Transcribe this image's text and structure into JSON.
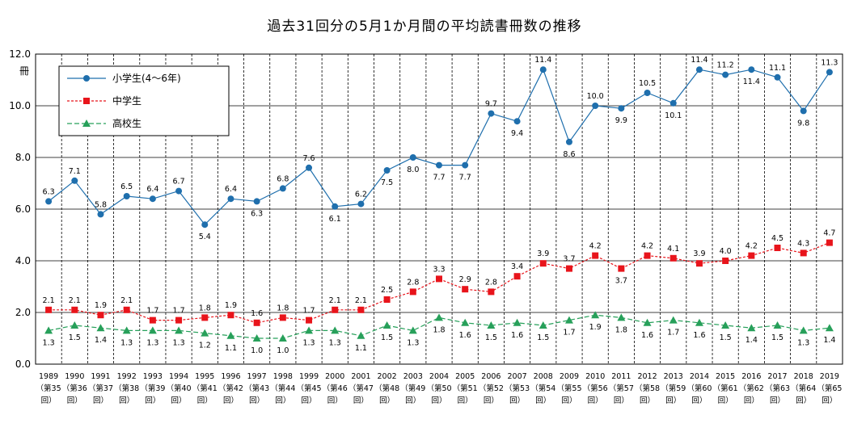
{
  "chart_data": {
    "type": "line",
    "title": "過去31回分の5月1か月間の平均読書冊数の推移",
    "ylabel": "冊",
    "ylim": [
      0,
      12
    ],
    "yticks": [
      "0.0",
      "2.0",
      "4.0",
      "6.0",
      "8.0",
      "10.0",
      "12.0"
    ],
    "grid": true,
    "legend_position": "top-left",
    "categories": [
      "1989",
      "1990",
      "1991",
      "1992",
      "1993",
      "1994",
      "1995",
      "1996",
      "1997",
      "1998",
      "1999",
      "2000",
      "2001",
      "2002",
      "2003",
      "2004",
      "2005",
      "2006",
      "2007",
      "2008",
      "2009",
      "2010",
      "2011",
      "2012",
      "2013",
      "2014",
      "2015",
      "2016",
      "2017",
      "2018",
      "2019"
    ],
    "sublabels": [
      "（第35",
      "（第36",
      "（第37",
      "（第38",
      "（第39",
      "（第40",
      "（第41",
      "（第42",
      "（第43",
      "（第44",
      "（第45",
      "（第46",
      "（第47",
      "（第48",
      "（第49",
      "（第50",
      "（第51",
      "（第52",
      "（第53",
      "（第54",
      "（第55",
      "（第56",
      "（第57",
      "（第58",
      "（第59",
      "（第60",
      "（第61",
      "（第62",
      "（第63",
      "（第64",
      "（第65"
    ],
    "sublabel2": "回）",
    "series": [
      {
        "name": "小学生(4～6年)",
        "color": "#1f6fad",
        "marker": "circle",
        "dash": "none",
        "values": [
          6.3,
          7.1,
          5.8,
          6.5,
          6.4,
          6.7,
          5.4,
          6.4,
          6.3,
          6.8,
          7.6,
          6.1,
          6.2,
          7.5,
          8.0,
          7.7,
          7.7,
          9.7,
          9.4,
          11.4,
          8.6,
          10.0,
          9.9,
          10.5,
          10.1,
          11.4,
          11.2,
          11.4,
          11.1,
          9.8,
          11.3
        ],
        "label_pos": [
          "a",
          "a",
          "a",
          "a",
          "a",
          "a",
          "b",
          "a",
          "b",
          "a",
          "a",
          "b",
          "a",
          "b",
          "b",
          "b",
          "b",
          "a",
          "b",
          "a",
          "b",
          "a",
          "b",
          "a",
          "b",
          "a",
          "a",
          "b",
          "a",
          "b",
          "a"
        ]
      },
      {
        "name": "中学生",
        "color": "#e8141b",
        "marker": "square",
        "dash": "3,2",
        "values": [
          2.1,
          2.1,
          1.9,
          2.1,
          1.7,
          1.7,
          1.8,
          1.9,
          1.6,
          1.8,
          1.7,
          2.1,
          2.1,
          2.5,
          2.8,
          3.3,
          2.9,
          2.8,
          3.4,
          3.9,
          3.7,
          4.2,
          3.7,
          4.2,
          4.1,
          3.9,
          4.0,
          4.2,
          4.5,
          4.3,
          4.7
        ],
        "label_pos": [
          "a",
          "a",
          "a",
          "a",
          "a",
          "a",
          "a",
          "a",
          "a",
          "a",
          "a",
          "a",
          "a",
          "a",
          "a",
          "a",
          "a",
          "a",
          "a",
          "a",
          "a",
          "a",
          "b",
          "a",
          "a",
          "a",
          "a",
          "a",
          "a",
          "a",
          "a"
        ]
      },
      {
        "name": "高校生",
        "color": "#27a05a",
        "marker": "triangle",
        "dash": "6,3",
        "values": [
          1.3,
          1.5,
          1.4,
          1.3,
          1.3,
          1.3,
          1.2,
          1.1,
          1.0,
          1.0,
          1.3,
          1.3,
          1.1,
          1.5,
          1.3,
          1.8,
          1.6,
          1.5,
          1.6,
          1.5,
          1.7,
          1.9,
          1.8,
          1.6,
          1.7,
          1.6,
          1.5,
          1.4,
          1.5,
          1.3,
          1.4
        ],
        "label_pos": [
          "b",
          "b",
          "b",
          "b",
          "b",
          "b",
          "b",
          "b",
          "b",
          "b",
          "b",
          "b",
          "b",
          "b",
          "b",
          "b",
          "b",
          "b",
          "b",
          "b",
          "b",
          "b",
          "b",
          "b",
          "b",
          "b",
          "b",
          "b",
          "b",
          "b",
          "b"
        ]
      }
    ]
  }
}
